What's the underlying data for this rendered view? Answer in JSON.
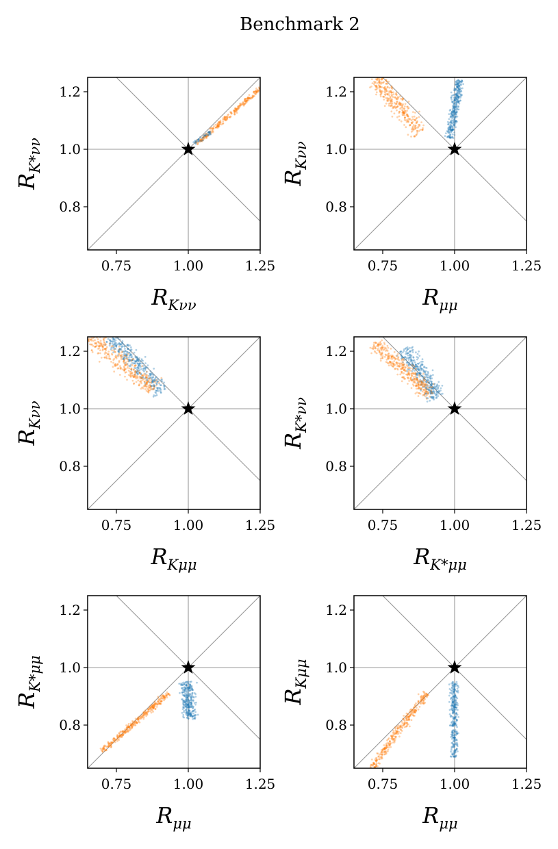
{
  "figure": {
    "title": "Benchmark 2"
  },
  "colors": {
    "series_blue": "#1f77b4",
    "series_orange": "#ff7f0e",
    "ref_lines": "#999999",
    "sm_star": "#000000"
  },
  "chart_data": [
    {
      "type": "scatter",
      "panel": "top-left",
      "xlabel": "R_Kνν",
      "xlabel_main": "R",
      "xlabel_sub": "Kνν",
      "ylabel": "R_K*νν",
      "ylabel_main": "R",
      "ylabel_sub": "K*νν",
      "xlim": [
        0.65,
        1.25
      ],
      "ylim": [
        0.65,
        1.25
      ],
      "xticks": [
        "0.75",
        "1.00",
        "1.25"
      ],
      "yticks": [
        "0.8",
        "1.0",
        "1.2"
      ],
      "reference_point": {
        "x": 1.0,
        "y": 1.0,
        "marker": "star"
      },
      "reference_lines": [
        "x=1",
        "y=1",
        "y=x",
        "y=2-x"
      ],
      "series": [
        {
          "color": "orange",
          "shape": "band",
          "start": [
            1.03,
            1.02
          ],
          "end": [
            1.25,
            1.21
          ],
          "width": 0.004,
          "density": 260
        },
        {
          "color": "blue",
          "shape": "band",
          "start": [
            1.02,
            1.02
          ],
          "end": [
            1.08,
            1.06
          ],
          "width": 0.004,
          "density": 40
        }
      ]
    },
    {
      "type": "scatter",
      "panel": "top-right",
      "xlabel": "R_μμ",
      "xlabel_main": "R",
      "xlabel_sub": "μμ",
      "ylabel": "R_Kνν",
      "ylabel_main": "R",
      "ylabel_sub": "Kνν",
      "xlim": [
        0.65,
        1.25
      ],
      "ylim": [
        0.65,
        1.25
      ],
      "xticks": [
        "0.75",
        "1.00",
        "1.25"
      ],
      "yticks": [
        "0.8",
        "1.0",
        "1.2"
      ],
      "reference_point": {
        "x": 1.0,
        "y": 1.0,
        "marker": "star"
      },
      "reference_lines": [
        "x=1",
        "y=1",
        "y=x",
        "y=2-x"
      ],
      "series": [
        {
          "color": "blue",
          "shape": "band",
          "start": [
            0.985,
            1.04
          ],
          "end": [
            1.015,
            1.24
          ],
          "width": 0.008,
          "density": 320
        },
        {
          "color": "orange",
          "shape": "band",
          "start": [
            0.72,
            1.25
          ],
          "end": [
            0.88,
            1.06
          ],
          "width": 0.015,
          "density": 320
        }
      ]
    },
    {
      "type": "scatter",
      "panel": "middle-left",
      "xlabel": "R_Kμμ",
      "xlabel_main": "R",
      "xlabel_sub": "Kμμ",
      "ylabel": "R_Kνν",
      "ylabel_main": "R",
      "ylabel_sub": "Kνν",
      "xlim": [
        0.65,
        1.25
      ],
      "ylim": [
        0.65,
        1.25
      ],
      "xticks": [
        "0.75",
        "1.00",
        "1.25"
      ],
      "yticks": [
        "0.8",
        "1.0",
        "1.2"
      ],
      "reference_point": {
        "x": 1.0,
        "y": 1.0,
        "marker": "star"
      },
      "reference_lines": [
        "x=1",
        "y=1",
        "y=x",
        "y=2-x"
      ],
      "series": [
        {
          "color": "blue",
          "shape": "band",
          "start": [
            0.73,
            1.25
          ],
          "end": [
            0.91,
            1.06
          ],
          "width": 0.015,
          "density": 320
        },
        {
          "color": "orange",
          "shape": "band",
          "start": [
            0.66,
            1.25
          ],
          "end": [
            0.88,
            1.07
          ],
          "width": 0.018,
          "density": 340
        }
      ]
    },
    {
      "type": "scatter",
      "panel": "middle-right",
      "xlabel": "R_K*μμ",
      "xlabel_main": "R",
      "xlabel_sub": "K*μμ",
      "ylabel": "R_K*νν",
      "ylabel_main": "R",
      "ylabel_sub": "K*νν",
      "xlim": [
        0.65,
        1.25
      ],
      "ylim": [
        0.65,
        1.25
      ],
      "xticks": [
        "0.75",
        "1.00",
        "1.25"
      ],
      "yticks": [
        "0.8",
        "1.0",
        "1.2"
      ],
      "reference_point": {
        "x": 1.0,
        "y": 1.0,
        "marker": "star"
      },
      "reference_lines": [
        "x=1",
        "y=1",
        "y=x",
        "y=2-x"
      ],
      "series": [
        {
          "color": "blue",
          "shape": "band",
          "start": [
            0.83,
            1.21
          ],
          "end": [
            0.94,
            1.04
          ],
          "width": 0.016,
          "density": 320
        },
        {
          "color": "orange",
          "shape": "band",
          "start": [
            0.72,
            1.23
          ],
          "end": [
            0.92,
            1.05
          ],
          "width": 0.014,
          "density": 340
        }
      ]
    },
    {
      "type": "scatter",
      "panel": "bottom-left",
      "xlabel": "R_μμ",
      "xlabel_main": "R",
      "xlabel_sub": "μμ",
      "ylabel": "R_K*μμ",
      "ylabel_main": "R",
      "ylabel_sub": "K*μμ",
      "xlim": [
        0.65,
        1.25
      ],
      "ylim": [
        0.65,
        1.25
      ],
      "xticks": [
        "0.75",
        "1.00",
        "1.25"
      ],
      "yticks": [
        "0.8",
        "1.0",
        "1.2"
      ],
      "reference_point": {
        "x": 1.0,
        "y": 1.0,
        "marker": "star"
      },
      "reference_lines": [
        "x=1",
        "y=1",
        "y=x",
        "y=2-x"
      ],
      "series": [
        {
          "color": "blue",
          "shape": "band",
          "start": [
            0.995,
            0.95
          ],
          "end": [
            1.005,
            0.82
          ],
          "width": 0.012,
          "density": 280
        },
        {
          "color": "orange",
          "shape": "band",
          "start": [
            0.7,
            0.71
          ],
          "end": [
            0.93,
            0.91
          ],
          "width": 0.005,
          "density": 320
        }
      ]
    },
    {
      "type": "scatter",
      "panel": "bottom-right",
      "xlabel": "R_μμ",
      "xlabel_main": "R",
      "xlabel_sub": "μμ",
      "ylabel": "R_Kμμ",
      "ylabel_main": "R",
      "ylabel_sub": "Kμμ",
      "xlim": [
        0.65,
        1.25
      ],
      "ylim": [
        0.65,
        1.25
      ],
      "xticks": [
        "0.75",
        "1.00",
        "1.25"
      ],
      "yticks": [
        "0.8",
        "1.0",
        "1.2"
      ],
      "reference_point": {
        "x": 1.0,
        "y": 1.0,
        "marker": "star"
      },
      "reference_lines": [
        "x=1",
        "y=1",
        "y=x",
        "y=2-x"
      ],
      "series": [
        {
          "color": "blue",
          "shape": "band",
          "start": [
            0.998,
            0.95
          ],
          "end": [
            1.0,
            0.69
          ],
          "width": 0.007,
          "density": 300
        },
        {
          "color": "orange",
          "shape": "band",
          "start": [
            0.71,
            0.65
          ],
          "end": [
            0.9,
            0.91
          ],
          "width": 0.007,
          "density": 320
        }
      ]
    }
  ]
}
